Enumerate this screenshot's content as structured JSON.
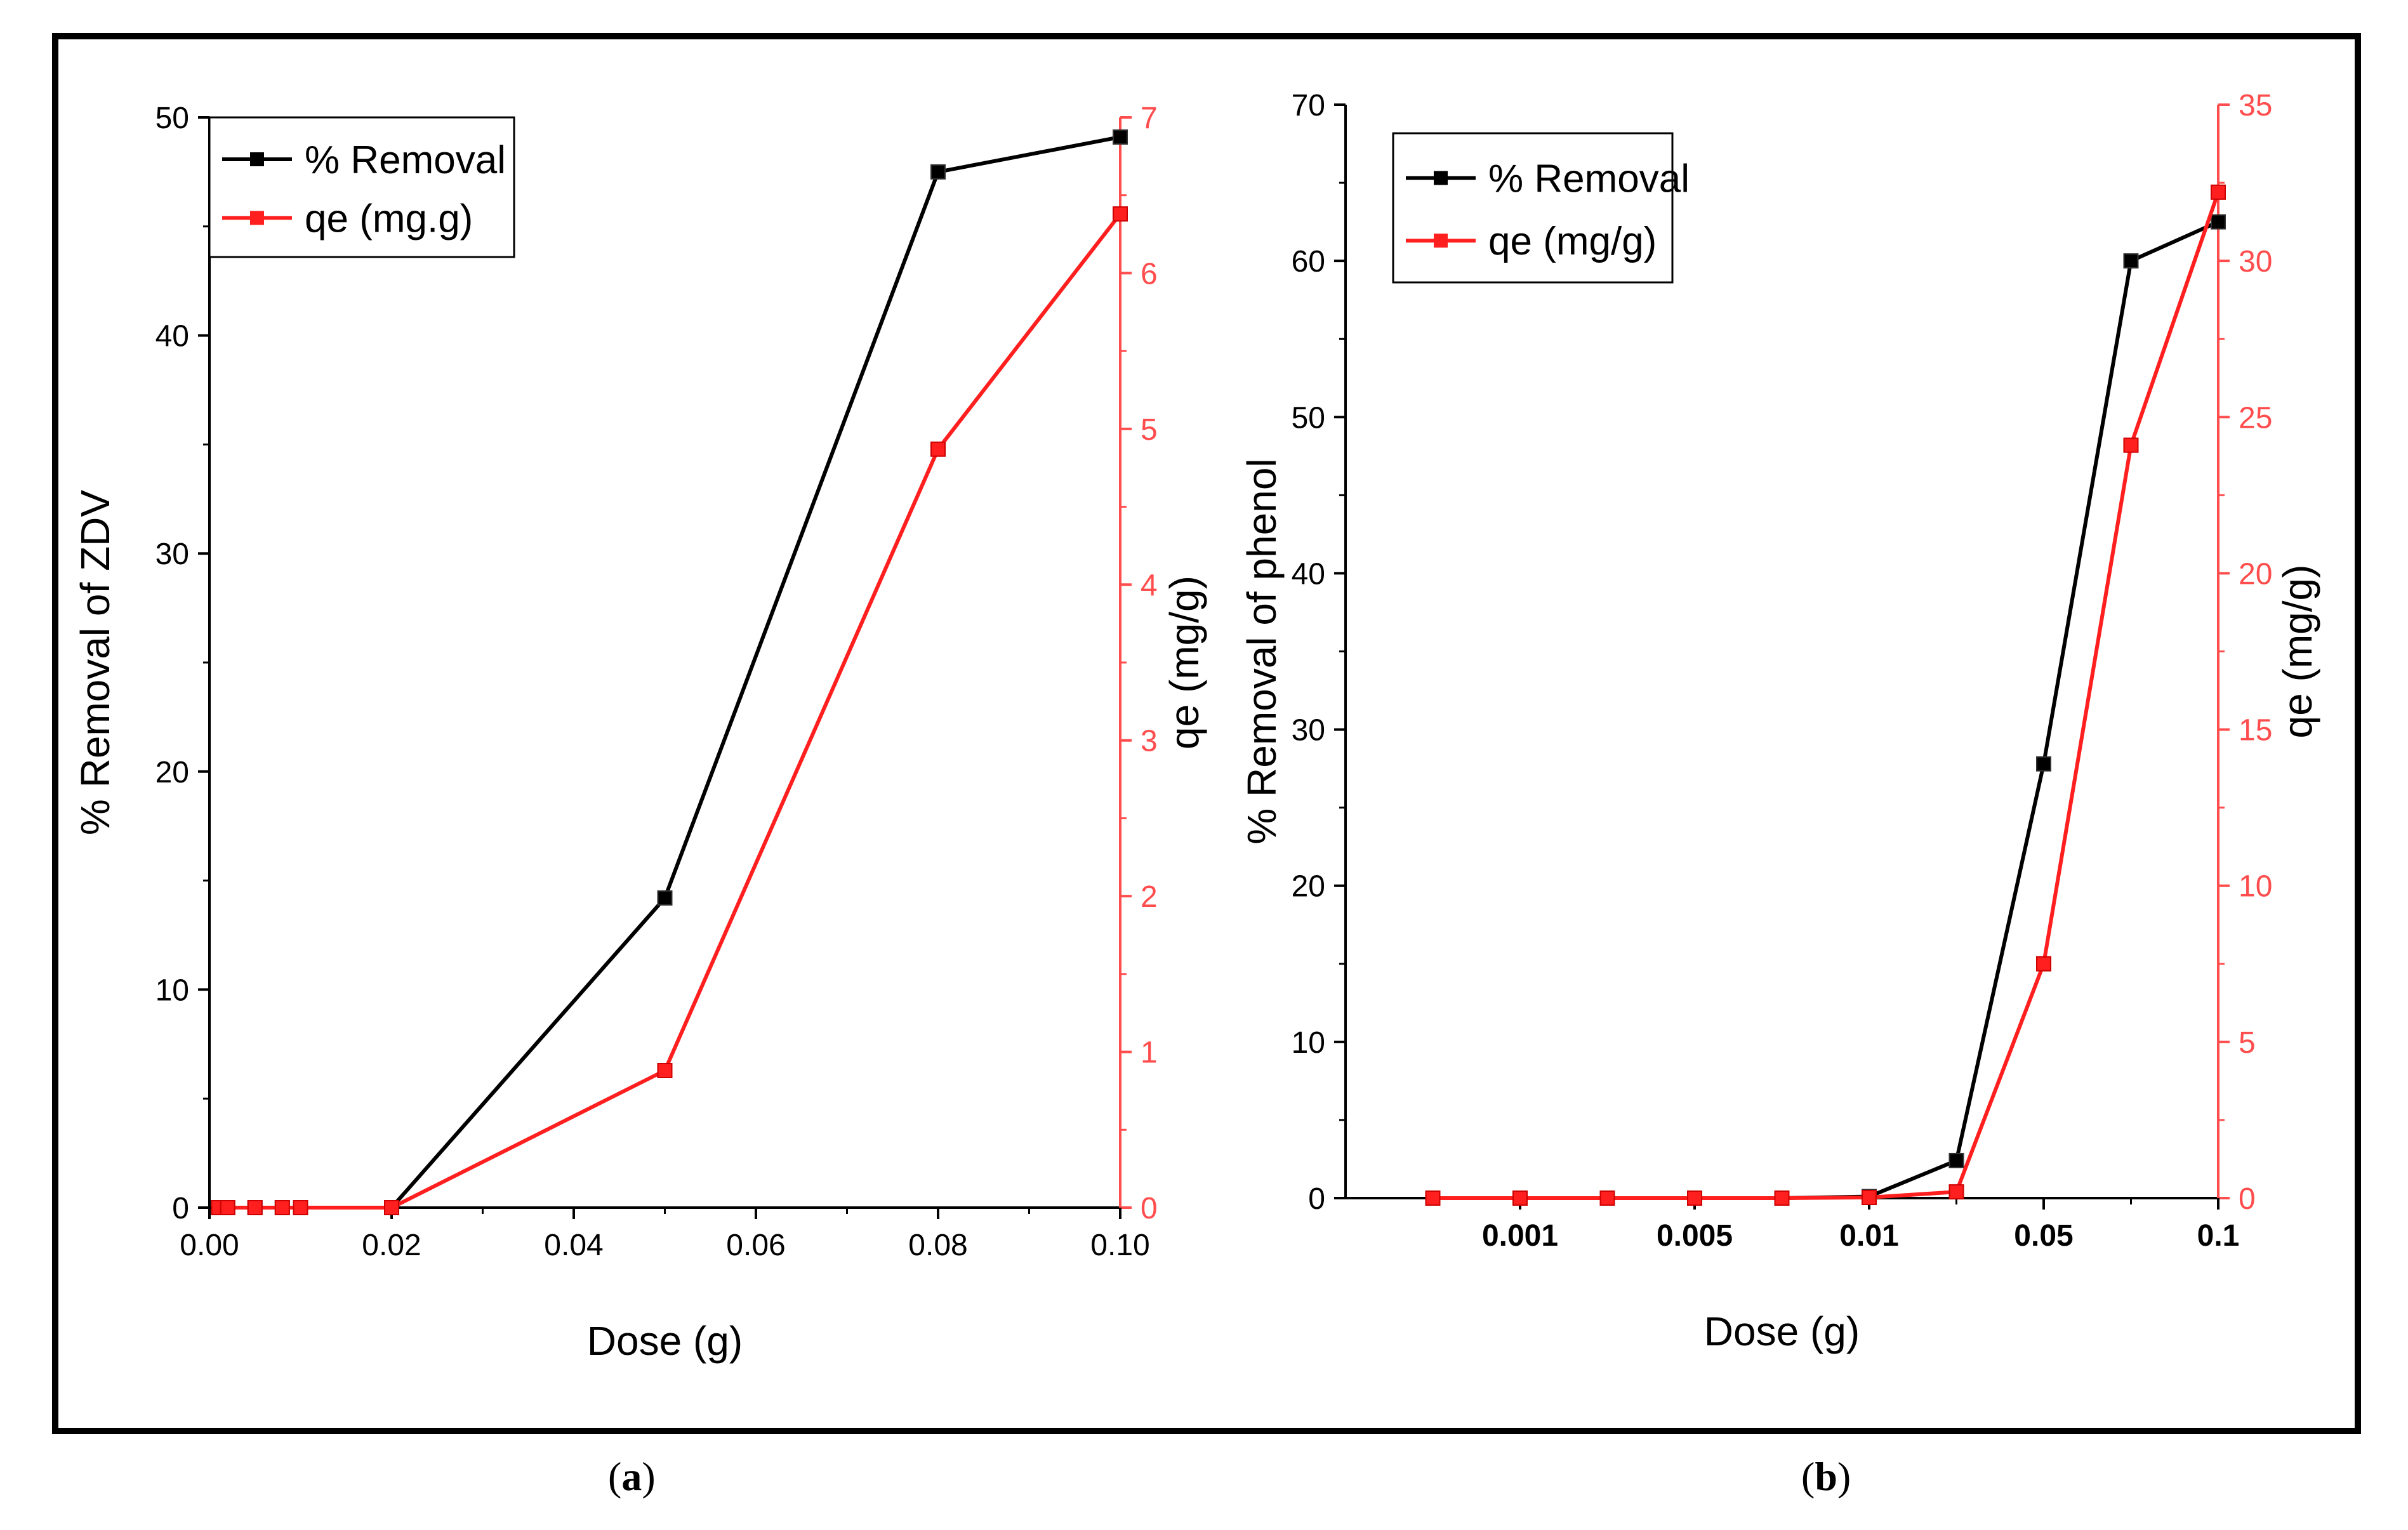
{
  "figure": {
    "labels": [
      "a",
      "b"
    ]
  },
  "colors": {
    "removal": "#000000",
    "qe": "#ff1f1f",
    "qe_axis": "#ff4d4d"
  },
  "chart_data": [
    {
      "id": "a",
      "type": "line",
      "title": "",
      "xlabel": "Dose (g)",
      "ylabel": "% Removal of ZDV",
      "y2label": "qe (mg/g)",
      "xlim": [
        0.0,
        0.1
      ],
      "ylim": [
        0,
        50
      ],
      "y2lim": [
        0,
        7
      ],
      "xticks": [
        "0.00",
        "0.02",
        "0.04",
        "0.06",
        "0.08",
        "0.10"
      ],
      "yticks": [
        "0",
        "10",
        "20",
        "30",
        "40",
        "50"
      ],
      "y2ticks": [
        "0",
        "1",
        "2",
        "3",
        "4",
        "5",
        "6",
        "7"
      ],
      "legend": {
        "position": "top-left",
        "entries": [
          "% Removal",
          "qe (mg.g)"
        ]
      },
      "series": [
        {
          "name": "% Removal",
          "axis": "left",
          "x": [
            0.001,
            0.002,
            0.005,
            0.008,
            0.01,
            0.02,
            0.05,
            0.08,
            0.1
          ],
          "values": [
            0,
            0,
            0,
            0,
            0,
            0,
            14.2,
            47.5,
            49.1
          ]
        },
        {
          "name": "qe (mg.g)",
          "axis": "right",
          "x": [
            0.001,
            0.002,
            0.005,
            0.008,
            0.01,
            0.02,
            0.05,
            0.08,
            0.1
          ],
          "values": [
            0,
            0,
            0,
            0,
            0,
            0,
            0.88,
            4.87,
            6.38
          ]
        }
      ]
    },
    {
      "id": "b",
      "type": "line",
      "title": "",
      "xlabel": "Dose (g)",
      "ylabel": "% Removal of phenol",
      "y2label": "qe (mg/g)",
      "xlim": [
        0,
        10
      ],
      "ylim": [
        0,
        70
      ],
      "y2lim": [
        0,
        35
      ],
      "xticks": [
        "0.001",
        "0.005",
        "0.01",
        "0.05",
        "0.1"
      ],
      "xtick_positions": [
        2,
        4,
        6,
        8,
        10
      ],
      "yticks": [
        "0",
        "10",
        "20",
        "30",
        "40",
        "50",
        "60",
        "70"
      ],
      "y2ticks": [
        "0",
        "5",
        "10",
        "15",
        "20",
        "25",
        "30",
        "35"
      ],
      "legend": {
        "position": "top-left",
        "entries": [
          "% Removal",
          "qe (mg/g)"
        ]
      },
      "series": [
        {
          "name": "% Removal",
          "axis": "left",
          "x": [
            1,
            2,
            3,
            4,
            5,
            6,
            7,
            8,
            9,
            10
          ],
          "values": [
            0,
            0,
            0,
            0,
            0,
            0.1,
            2.4,
            27.8,
            60.0,
            62.5
          ]
        },
        {
          "name": "qe (mg/g)",
          "axis": "right",
          "x": [
            1,
            2,
            3,
            4,
            5,
            6,
            7,
            8,
            9,
            10
          ],
          "values": [
            0,
            0,
            0,
            0,
            0,
            0.02,
            0.2,
            7.5,
            24.1,
            32.2
          ]
        }
      ]
    }
  ]
}
